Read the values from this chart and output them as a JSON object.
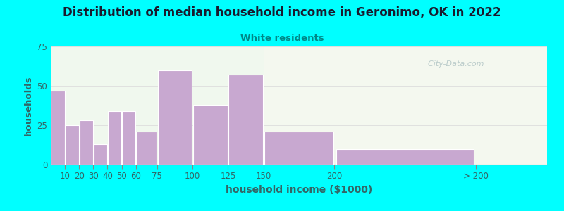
{
  "title": "Distribution of median household income in Geronimo, OK in 2022",
  "subtitle": "White residents",
  "xlabel": "household income ($1000)",
  "ylabel": "households",
  "background_color": "#00FFFF",
  "bar_color": "#c8a8d0",
  "bar_edge_color": "#ffffff",
  "title_color": "#1a1a2e",
  "subtitle_color": "#008888",
  "axis_label_color": "#336666",
  "tick_label_color": "#336666",
  "watermark": "  City-Data.com",
  "bar_lefts": [
    0,
    10,
    20,
    30,
    40,
    50,
    60,
    75,
    100,
    125,
    150,
    200
  ],
  "bar_widths": [
    10,
    10,
    10,
    10,
    10,
    10,
    15,
    25,
    25,
    25,
    50,
    100
  ],
  "values": [
    47,
    25,
    28,
    13,
    34,
    34,
    21,
    60,
    38,
    57,
    21,
    10
  ],
  "ylim": [
    0,
    75
  ],
  "yticks": [
    0,
    25,
    50,
    75
  ],
  "xtick_positions": [
    10,
    20,
    30,
    40,
    50,
    60,
    75,
    100,
    125,
    150,
    200,
    300
  ],
  "xtick_labels": [
    "10",
    "20",
    "30",
    "40",
    "50",
    "60",
    "75",
    "100",
    "125",
    "150",
    "200",
    "> 200"
  ],
  "xlim": [
    0,
    350
  ]
}
